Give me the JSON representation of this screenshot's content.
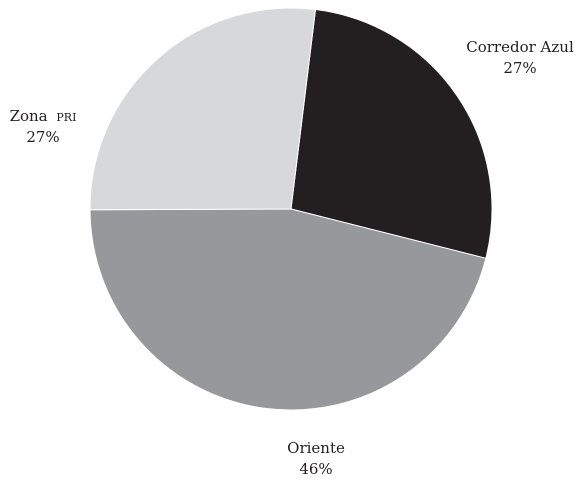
{
  "chart_data": {
    "type": "pie",
    "title": "",
    "start_angle_deg": 7,
    "direction": "clockwise",
    "legend": "none",
    "slices": [
      {
        "label": "Corredor Azul",
        "value_label": "27%",
        "value": 27,
        "color": "#231f20"
      },
      {
        "label": "Oriente",
        "value_label": "46%",
        "value": 46,
        "color": "#97989b"
      },
      {
        "label": "Zona PRI",
        "label_main": "Zona",
        "label_small": "pri",
        "value_label": "27%",
        "value": 27,
        "color": "#d7d8da"
      }
    ]
  }
}
